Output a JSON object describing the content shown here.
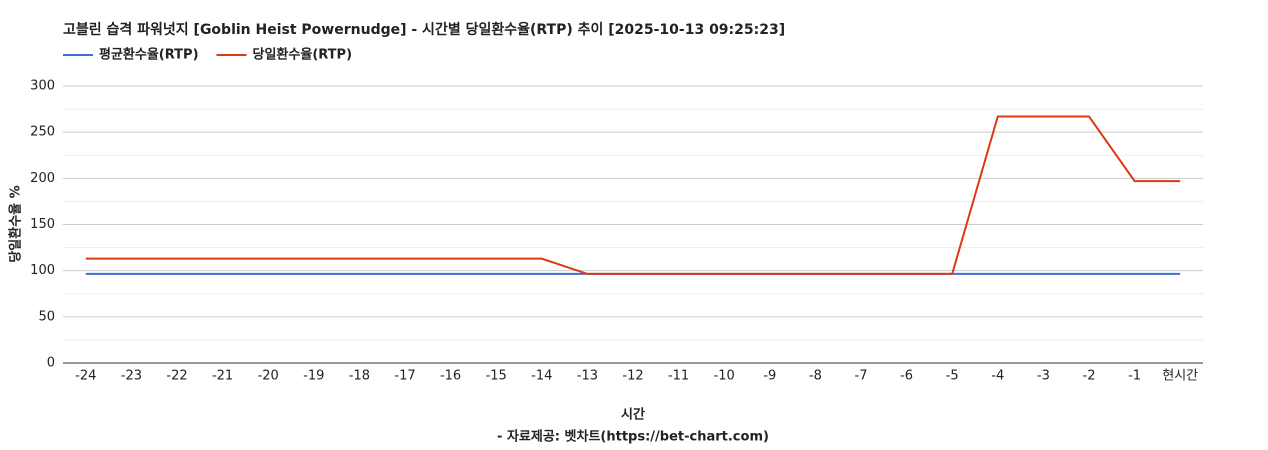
{
  "chart_data": {
    "type": "line",
    "title": "고블린 습격 파워넛지 [Goblin Heist Powernudge] - 시간별 당일환수율(RTP) 추이 [2025-10-13 09:25:23]",
    "x_label": "시간",
    "y_label": "당일환수율 %",
    "source": "- 자료제공: 벳차트(https://bet-chart.com)",
    "categories": [
      "-24",
      "-23",
      "-22",
      "-21",
      "-20",
      "-19",
      "-18",
      "-17",
      "-16",
      "-15",
      "-14",
      "-13",
      "-12",
      "-11",
      "-10",
      "-9",
      "-8",
      "-7",
      "-6",
      "-5",
      "-4",
      "-3",
      "-2",
      "-1",
      "현시간"
    ],
    "series": [
      {
        "name": "평균환수율(RTP)",
        "color": "#3f6fd4",
        "values": [
          96.5,
          96.5,
          96.5,
          96.5,
          96.5,
          96.5,
          96.5,
          96.5,
          96.5,
          96.5,
          96.5,
          96.5,
          96.5,
          96.5,
          96.5,
          96.5,
          96.5,
          96.5,
          96.5,
          96.5,
          96.5,
          96.5,
          96.5,
          96.5,
          96.5
        ]
      },
      {
        "name": "당일환수율(RTP)",
        "color": "#dc3912",
        "values": [
          113,
          113,
          113,
          113,
          113,
          113,
          113,
          113,
          113,
          113,
          113,
          96.5,
          96.5,
          96.5,
          96.5,
          96.5,
          96.5,
          96.5,
          96.5,
          96.5,
          267,
          267,
          267,
          197,
          197
        ]
      }
    ],
    "ylim": [
      0,
      300
    ],
    "yticks": [
      0,
      50,
      100,
      150,
      200,
      250,
      300
    ],
    "minor_yticks": [
      25,
      75,
      125,
      175,
      225,
      275
    ],
    "grid": true
  }
}
